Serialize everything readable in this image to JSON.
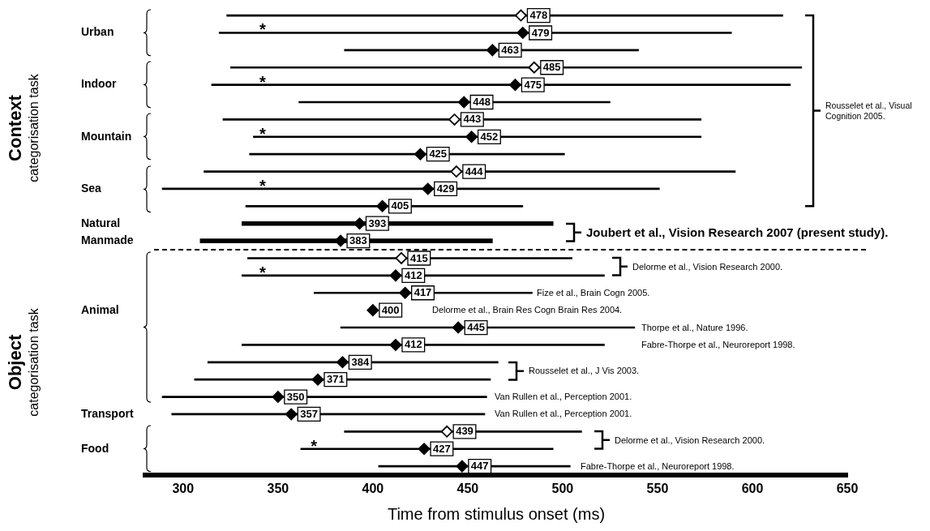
{
  "chart_data": {
    "type": "bar",
    "orientation": "horizontal",
    "xlabel": "Time from stimulus onset (ms)",
    "categories": [
      null,
      "Urban",
      null,
      null,
      "Indoor",
      null,
      null,
      "Mountain",
      null,
      null,
      "Sea",
      null,
      "Natural",
      "Manmade",
      null,
      null,
      null,
      "Animal",
      null,
      null,
      null,
      null,
      null,
      "Transport",
      null,
      "Food",
      null
    ],
    "series": [
      {
        "color": "#000000",
        "base": [
          323,
          319,
          385,
          325,
          315,
          361,
          321,
          337,
          335,
          311,
          289,
          333,
          331,
          309,
          334,
          331,
          369,
          null,
          383,
          331,
          313,
          306,
          289,
          294,
          385,
          362,
          403
        ],
        "values": [
          293,
          270,
          155,
          301,
          305,
          164,
          252,
          236,
          166,
          280,
          262,
          146,
          164,
          154,
          171,
          191,
          115,
          null,
          155,
          191,
          153,
          156,
          171,
          165,
          125,
          133,
          101
        ]
      },
      {
        "type": "scatter",
        "color": "#ffffff",
        "values": [
          478,
          null,
          null,
          485,
          null,
          null,
          443,
          null,
          null,
          444,
          null,
          null,
          null,
          null,
          415,
          null,
          null,
          null,
          null,
          null,
          null,
          null,
          null,
          null,
          439,
          null,
          null
        ],
        "value_labels": [
          "478",
          null,
          null,
          "485",
          null,
          null,
          "443",
          null,
          null,
          "444",
          null,
          null,
          null,
          null,
          "415",
          null,
          null,
          null,
          null,
          null,
          null,
          null,
          null,
          null,
          "439",
          null,
          null
        ]
      },
      {
        "type": "scatter",
        "color": "#000000",
        "values": [
          null,
          479,
          463,
          null,
          475,
          448,
          null,
          452,
          425,
          null,
          429,
          405,
          393,
          383,
          null,
          412,
          417,
          400,
          445,
          412,
          384,
          371,
          350,
          357,
          null,
          427,
          447
        ],
        "value_labels": [
          null,
          "479",
          "463",
          null,
          "475",
          "448",
          null,
          "452",
          "425",
          null,
          "429",
          "405",
          "393",
          "383",
          null,
          "412",
          "417",
          "400",
          "445",
          "412",
          "384",
          "371",
          "350",
          "357",
          null,
          "427",
          "447"
        ]
      }
    ],
    "xlim": [
      280,
      650
    ],
    "xticks": [
      300,
      350,
      400,
      450,
      500,
      550,
      600,
      650
    ],
    "marker": "diamond",
    "legend": false,
    "grid": false,
    "annotations": [
      "Context",
      "categorisation task",
      "Object",
      "categorisation task",
      "Rousselet et al., Visual Cognition 2005.",
      "Joubert et al., Vision Research 2007 (present study).",
      "Delorme et al., Vision Research 2000.",
      "Fize et al., Brain Cogn 2005.",
      "Delorme et al., Brain Res Cogn Brain Res 2004.",
      "Thorpe et al., Nature 1996.",
      "Fabre-Thorpe et al., Neuroreport 1998.",
      "Rousselet et al., J Vis 2003.",
      "Van Rullen et al., Perception 2001.",
      "Van Rullen et al., Perception 2001.",
      "Delorme et al., Vision Research 2000.",
      "Fabre-Thorpe et al., Neuroreport 1998.",
      "*",
      "*",
      "*",
      "*",
      "*",
      "*"
    ]
  }
}
